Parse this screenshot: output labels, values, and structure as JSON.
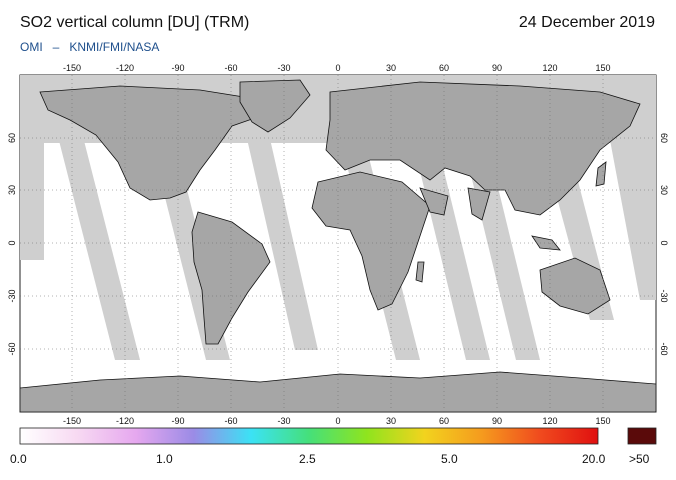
{
  "header": {
    "title": "SO2 vertical column [DU] (TRM)",
    "date": "24 December 2019",
    "credit_left": "OMI",
    "credit_sep": "–",
    "credit_right": "KNMI/FMI/NASA"
  },
  "map": {
    "projection": "equirectangular",
    "lon_ticks": [
      "-150",
      "-120",
      "-90",
      "-60",
      "-30",
      "0",
      "30",
      "60",
      "90",
      "120",
      "150"
    ],
    "lat_ticks": [
      "60",
      "30",
      "0",
      "-30",
      "-60"
    ],
    "background_color": "#ffffff",
    "no_data_color": "#cfcfcf",
    "land_shading_color": "#a6a6a6"
  },
  "colorbar": {
    "labels": [
      "0.0",
      "1.0",
      "2.5",
      "5.0",
      "20.0"
    ],
    "overflow_label": ">50",
    "overflow_color": "#5a0a0a",
    "stops": [
      "#ffffff",
      "#f7d9f2",
      "#e6a8ef",
      "#9b8be6",
      "#3be2f5",
      "#45e07a",
      "#8fe41e",
      "#f2d31e",
      "#f59a1e",
      "#f04a1e",
      "#e01010"
    ]
  }
}
